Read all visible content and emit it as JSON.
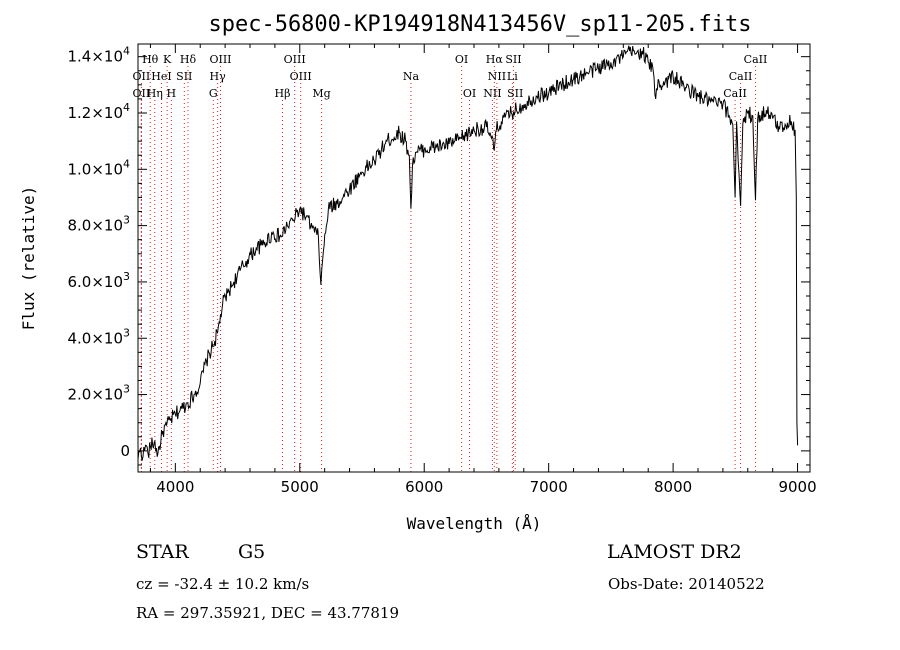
{
  "chart_data": {
    "type": "line",
    "title": "spec-56800-KP194918N413456V_sp11-205.fits",
    "xlabel": "Wavelength (Å)",
    "ylabel": "Flux (relative)",
    "xlim": [
      3700,
      9100
    ],
    "ylim": [
      -750,
      14450
    ],
    "x_ticks": [
      4000,
      5000,
      6000,
      7000,
      8000,
      9000
    ],
    "y_ticks": [
      {
        "value": 0,
        "mantissa": "0",
        "exp": ""
      },
      {
        "value": 2000,
        "mantissa": "2.0×10",
        "exp": "3"
      },
      {
        "value": 4000,
        "mantissa": "4.0×10",
        "exp": "3"
      },
      {
        "value": 6000,
        "mantissa": "6.0×10",
        "exp": "3"
      },
      {
        "value": 8000,
        "mantissa": "8.0×10",
        "exp": "3"
      },
      {
        "value": 10000,
        "mantissa": "1.0×10",
        "exp": "4"
      },
      {
        "value": 12000,
        "mantissa": "1.2×10",
        "exp": "4"
      },
      {
        "value": 14000,
        "mantissa": "1.4×10",
        "exp": "4"
      }
    ],
    "grid": false,
    "series": [
      {
        "x": [
          3700,
          3720,
          3740,
          3760,
          3780,
          3800,
          3830,
          3860,
          3900,
          3930,
          3960,
          4000,
          4050,
          4100,
          4150,
          4200,
          4250,
          4300,
          4340,
          4380,
          4420,
          4470,
          4520,
          4580,
          4650,
          4700,
          4780,
          4850,
          4900,
          4950,
          5000,
          5050,
          5100,
          5150,
          5170,
          5190,
          5230,
          5300,
          5400,
          5500,
          5600,
          5700,
          5800,
          5850,
          5880,
          5893,
          5905,
          5930,
          6000,
          6100,
          6200,
          6300,
          6400,
          6500,
          6540,
          6563,
          6580,
          6620,
          6700,
          6800,
          6900,
          7000,
          7100,
          7200,
          7300,
          7400,
          7500,
          7600,
          7650,
          7700,
          7750,
          7800,
          7840,
          7860,
          7880,
          7900,
          8000,
          8100,
          8200,
          8300,
          8400,
          8450,
          8480,
          8498,
          8510,
          8542,
          8560,
          8600,
          8640,
          8662,
          8680,
          8750,
          8800,
          8850,
          8900,
          8950,
          8980,
          8990,
          8995,
          9000
        ],
        "y": [
          -300,
          100,
          -200,
          200,
          -100,
          150,
          300,
          -100,
          700,
          900,
          1100,
          1300,
          1500,
          1700,
          2000,
          2400,
          3200,
          3700,
          4200,
          5200,
          5600,
          6000,
          6400,
          6800,
          7200,
          7300,
          7700,
          7600,
          8000,
          8200,
          8600,
          8300,
          7900,
          7600,
          5900,
          7100,
          8600,
          8800,
          9300,
          9900,
          10300,
          11000,
          11300,
          11000,
          10500,
          8600,
          10100,
          10600,
          10700,
          10800,
          10900,
          11100,
          11400,
          11500,
          11100,
          10700,
          11400,
          11700,
          12000,
          12300,
          12600,
          12700,
          13000,
          13200,
          13400,
          13600,
          13800,
          14000,
          14200,
          14100,
          14200,
          13800,
          13500,
          12500,
          13200,
          13000,
          13300,
          12900,
          12600,
          12400,
          12300,
          11900,
          11600,
          9000,
          11700,
          8700,
          11600,
          12000,
          11900,
          8900,
          11800,
          12100,
          11800,
          11500,
          11600,
          11700,
          11400,
          9000,
          1000,
          200
        ]
      }
    ],
    "line_markers": [
      {
        "label": "Hθ",
        "wavelength": 3798,
        "row": 0
      },
      {
        "label": "K",
        "wavelength": 3934,
        "row": 0
      },
      {
        "label": "Hδ",
        "wavelength": 4102,
        "row": 0
      },
      {
        "label": "OIII",
        "wavelength": 4363,
        "row": 0
      },
      {
        "label": "OIII",
        "wavelength": 4959,
        "row": 0
      },
      {
        "label": "OI",
        "wavelength": 6300,
        "row": 0
      },
      {
        "label": "Hα",
        "wavelength": 6563,
        "row": 0
      },
      {
        "label": "SII",
        "wavelength": 6717,
        "row": 0
      },
      {
        "label": "CaII",
        "wavelength": 8662,
        "row": 0
      },
      {
        "label": "OII",
        "wavelength": 3727,
        "row": 1
      },
      {
        "label": "HeI",
        "wavelength": 3889,
        "row": 1
      },
      {
        "label": "SII",
        "wavelength": 4072,
        "row": 1
      },
      {
        "label": "Hγ",
        "wavelength": 4340,
        "row": 1
      },
      {
        "label": "OIII",
        "wavelength": 5007,
        "row": 1
      },
      {
        "label": "Na",
        "wavelength": 5893,
        "row": 1
      },
      {
        "label": "NII",
        "wavelength": 6584,
        "row": 1
      },
      {
        "label": "Li",
        "wavelength": 6708,
        "row": 1
      },
      {
        "label": "CaII",
        "wavelength": 8542,
        "row": 1
      },
      {
        "label": "OII",
        "wavelength": 3727,
        "row": 2
      },
      {
        "label": "Hη",
        "wavelength": 3835,
        "row": 2
      },
      {
        "label": "H",
        "wavelength": 3968,
        "row": 2
      },
      {
        "label": "G",
        "wavelength": 4305,
        "row": 2
      },
      {
        "label": "Hβ",
        "wavelength": 4861,
        "row": 2
      },
      {
        "label": "Mg",
        "wavelength": 5175,
        "row": 2
      },
      {
        "label": "OI",
        "wavelength": 6364,
        "row": 2
      },
      {
        "label": "NII",
        "wavelength": 6548,
        "row": 2
      },
      {
        "label": "SII",
        "wavelength": 6731,
        "row": 2
      },
      {
        "label": "CaII",
        "wavelength": 8498,
        "row": 2
      }
    ],
    "marker_color": "#e02020",
    "line_color": "#000000"
  },
  "info": {
    "object_class": "STAR",
    "subclass": "G5",
    "survey": "LAMOST DR2",
    "redshift": "cz = -32.4 ± 10.2 km/s",
    "obs_date": "Obs-Date: 20140522",
    "coords": "RA = 297.35921, DEC =  43.77819"
  }
}
